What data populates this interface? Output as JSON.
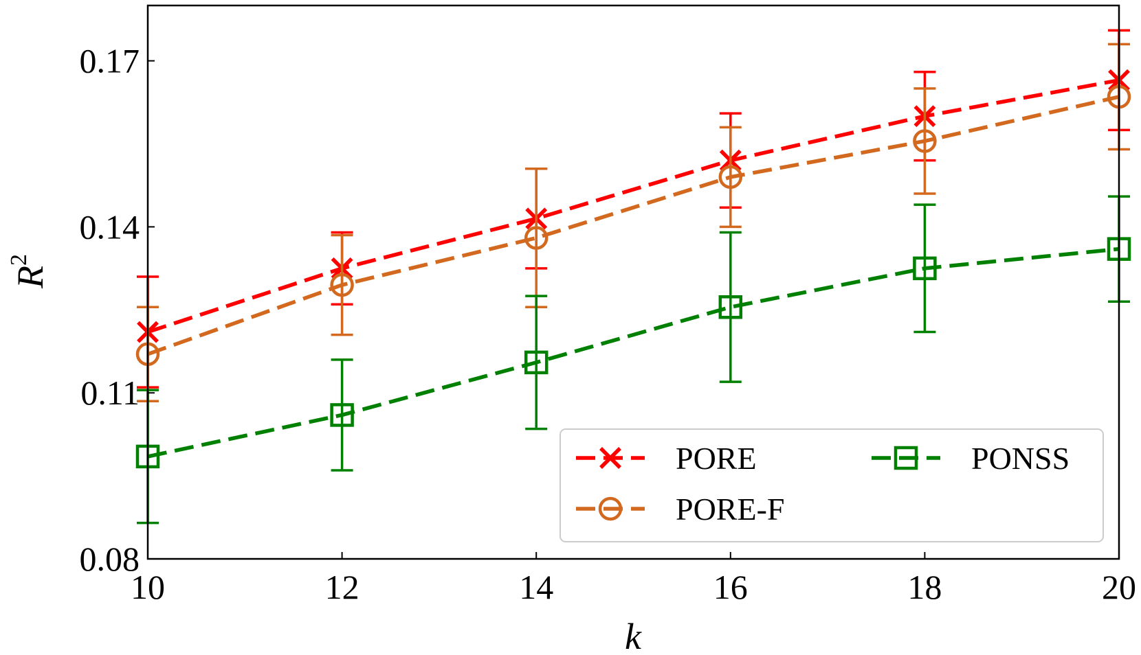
{
  "chart_data": {
    "type": "line",
    "xlabel": "k",
    "ylabel": "R",
    "ylabel_superscript": "2",
    "x": [
      10,
      12,
      14,
      16,
      18,
      20
    ],
    "xlim": [
      10,
      20
    ],
    "ylim": [
      0.08,
      0.18
    ],
    "xticks": [
      "10",
      "12",
      "14",
      "16",
      "18",
      "20"
    ],
    "yticks": [
      "0.08",
      "0.11",
      "0.14",
      "0.17"
    ],
    "ytick_values": [
      0.08,
      0.11,
      0.14,
      0.17
    ],
    "legend_position": "bottom-right",
    "series": [
      {
        "name": "PORE",
        "color": "#ff0000",
        "marker": "x",
        "values": [
          0.121,
          0.1325,
          0.1415,
          0.152,
          0.16,
          0.1665
        ],
        "error": [
          0.01,
          0.0065,
          0.009,
          0.0085,
          0.008,
          0.009
        ]
      },
      {
        "name": "PORE-F",
        "color": "#d2691e",
        "marker": "o",
        "values": [
          0.117,
          0.1295,
          0.138,
          0.149,
          0.1555,
          0.1635
        ],
        "error": [
          0.0085,
          0.009,
          0.0125,
          0.009,
          0.0095,
          0.0095
        ]
      },
      {
        "name": "PONSS",
        "color": "#008000",
        "marker": "s",
        "values": [
          0.0985,
          0.106,
          0.1155,
          0.1255,
          0.1325,
          0.136
        ],
        "error": [
          0.012,
          0.01,
          0.012,
          0.0135,
          0.0115,
          0.0095
        ]
      }
    ]
  }
}
